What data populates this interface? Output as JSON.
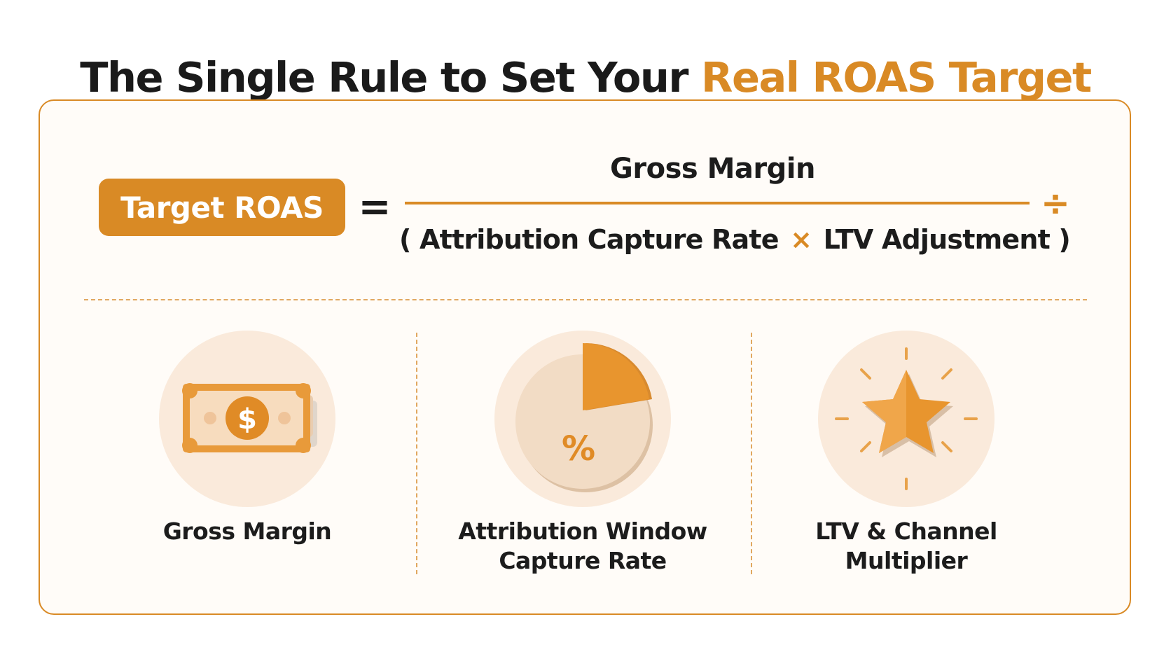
{
  "title": {
    "prefix": "The Single Rule to Set Your",
    "highlight": "Real ROAS Target"
  },
  "formula": {
    "lhs": "Target ROAS",
    "equals": "=",
    "numerator": "Gross Margin",
    "denominator": {
      "open_paren": "(",
      "term1": "Attribution Capture Rate",
      "operator": "×",
      "term2": "LTV Adjustment",
      "close_paren": ")"
    },
    "divide_symbol": "÷"
  },
  "factors": [
    {
      "icon": "dollar-bill-icon",
      "label_line1": "Gross Margin",
      "label_line2": ""
    },
    {
      "icon": "pie-chart-percent-icon",
      "label_line1": "Attribution Window",
      "label_line2": "Capture Rate"
    },
    {
      "icon": "star-burst-icon",
      "label_line1": "LTV & Channel",
      "label_line2": "Multiplier"
    }
  ],
  "icon_glyphs": {
    "dollar": "$",
    "percent": "%"
  },
  "colors": {
    "accent": "#d98a25",
    "accent_light": "#f5c9a0",
    "circle_bg": "#faeadb",
    "text": "#1c1c1c",
    "card_bg": "#fffcf8"
  }
}
